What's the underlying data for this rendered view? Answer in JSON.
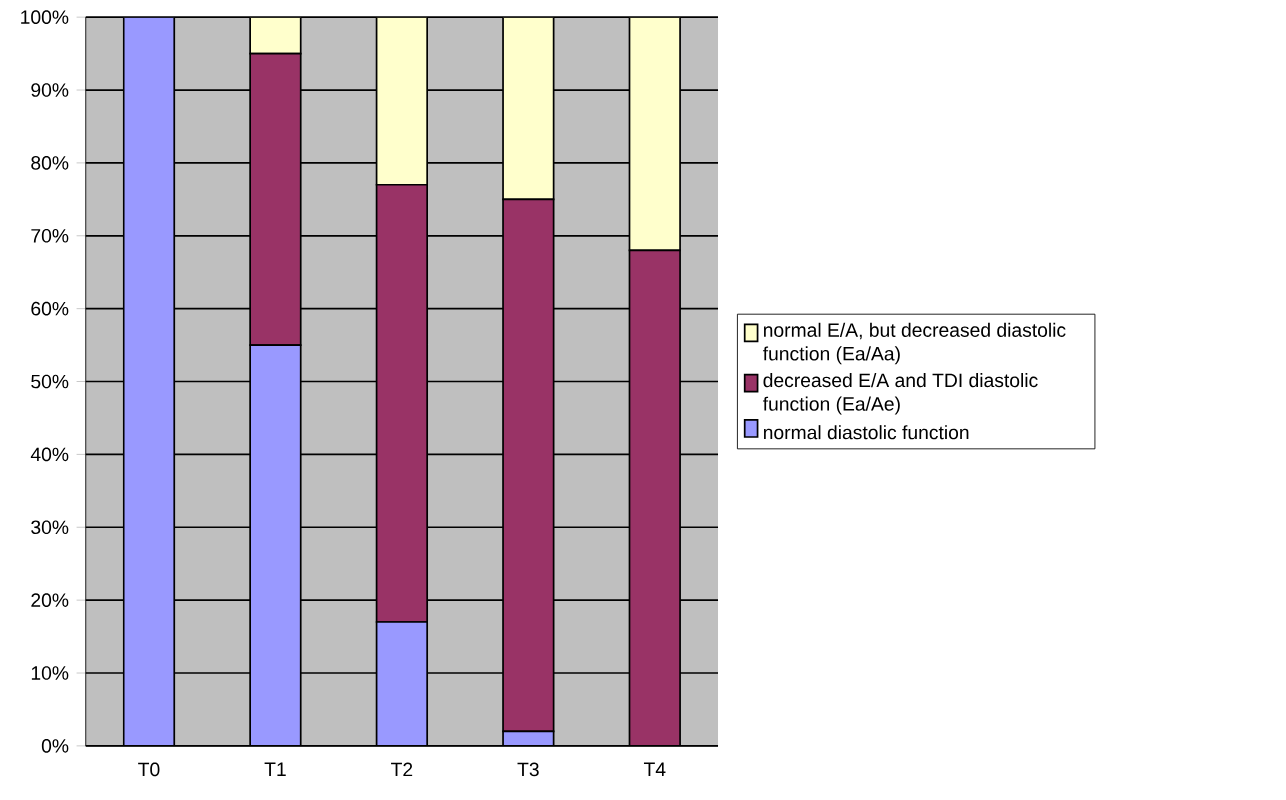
{
  "chart_data": {
    "type": "bar",
    "stacked": true,
    "categories": [
      "T0",
      "T1",
      "T2",
      "T3",
      "T4"
    ],
    "series": [
      {
        "name": "normal diastolic function",
        "color": "#9999ff",
        "values": [
          100,
          55,
          17,
          2,
          0
        ]
      },
      {
        "name": "decreased E/A and TDI diastolic function (Ea/Ae)",
        "color": "#993366",
        "values": [
          0,
          40,
          60,
          73,
          68
        ]
      },
      {
        "name": "normal E/A, but decreased diastolic function (Ea/Aa)",
        "color": "#ffffcc",
        "values": [
          0,
          5,
          23,
          25,
          32
        ]
      }
    ],
    "ylim": [
      0,
      100
    ],
    "yticks": [
      {
        "value": 0,
        "label": "0%"
      },
      {
        "value": 10,
        "label": "10%"
      },
      {
        "value": 20,
        "label": "20%"
      },
      {
        "value": 30,
        "label": "30%"
      },
      {
        "value": 40,
        "label": "40%"
      },
      {
        "value": 50,
        "label": "50%"
      },
      {
        "value": 60,
        "label": "60%"
      },
      {
        "value": 70,
        "label": "70%"
      },
      {
        "value": 80,
        "label": "80%"
      },
      {
        "value": 90,
        "label": "90%"
      },
      {
        "value": 100,
        "label": "100%"
      }
    ],
    "grid": "y",
    "legend": "right"
  }
}
